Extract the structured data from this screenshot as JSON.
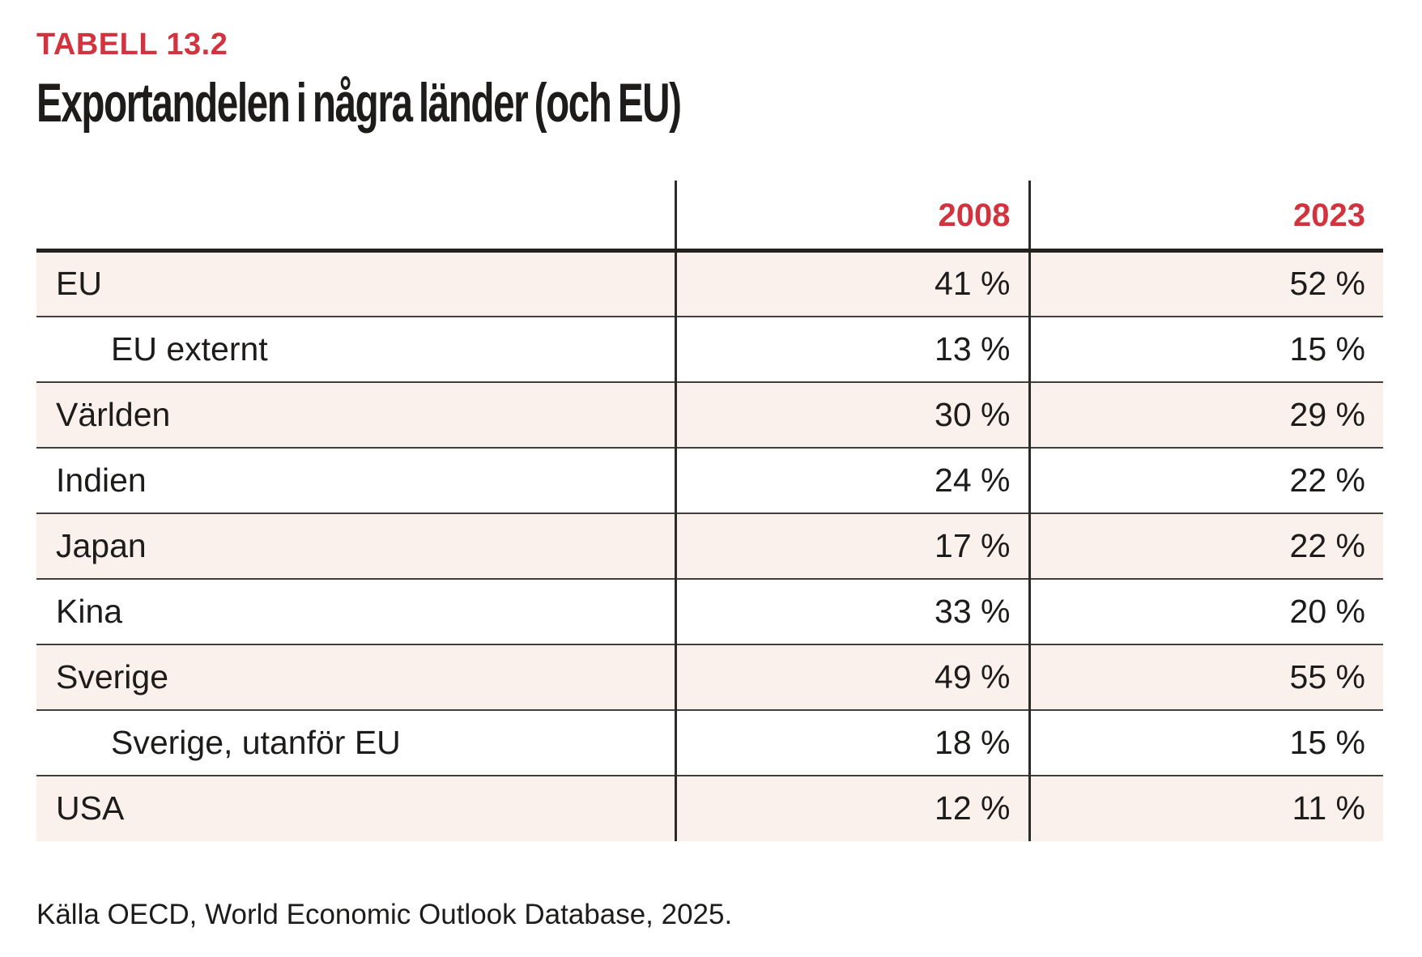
{
  "page": {
    "kicker": "TABELL 13.2",
    "title": "Exportandelen i några länder (och EU)",
    "source": "Källa OECD, World Economic Outlook Database, 2025."
  },
  "colors": {
    "accent_red": "#d2333e",
    "row_tint": "#faf0ec",
    "text_ink": "#1d1c1a"
  },
  "table": {
    "columns": [
      "",
      "2008",
      "2023"
    ],
    "rows": [
      {
        "label": "EU",
        "indent": false,
        "values": [
          "41 %",
          "52 %"
        ]
      },
      {
        "label": "EU externt",
        "indent": true,
        "values": [
          "13 %",
          "15 %"
        ]
      },
      {
        "label": "Världen",
        "indent": false,
        "values": [
          "30 %",
          "29 %"
        ]
      },
      {
        "label": "Indien",
        "indent": false,
        "values": [
          "24 %",
          "22 %"
        ]
      },
      {
        "label": "Japan",
        "indent": false,
        "values": [
          "17 %",
          "22 %"
        ]
      },
      {
        "label": "Kina",
        "indent": false,
        "values": [
          "33 %",
          "20 %"
        ]
      },
      {
        "label": "Sverige",
        "indent": false,
        "values": [
          "49 %",
          "55 %"
        ]
      },
      {
        "label": "Sverige, utanför EU",
        "indent": true,
        "values": [
          "18 %",
          "15 %"
        ]
      },
      {
        "label": "USA",
        "indent": false,
        "values": [
          "12 %",
          "11 %"
        ]
      }
    ]
  }
}
